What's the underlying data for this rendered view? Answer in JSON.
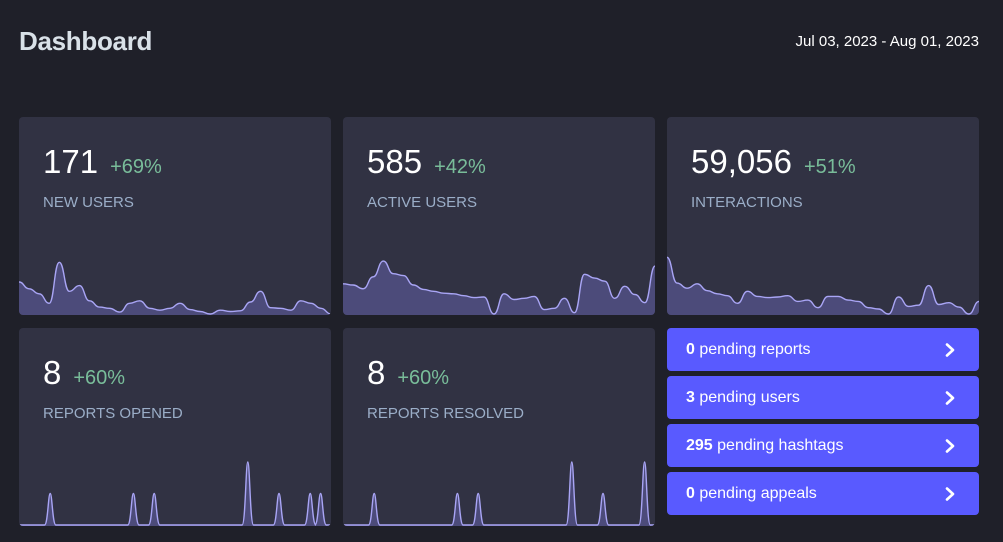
{
  "header": {
    "title": "Dashboard",
    "date_range": "Jul 03, 2023 - Aug 01, 2023"
  },
  "metrics": [
    {
      "value": "171",
      "change": "+69%",
      "label": "NEW USERS",
      "spark": [
        0.51,
        0.4,
        0.32,
        0.17,
        0.82,
        0.36,
        0.45,
        0.21,
        0.11,
        0.09,
        0.03,
        0.17,
        0.21,
        0.09,
        0.06,
        0.09,
        0.17,
        0.07,
        0.04,
        0.0,
        0.06,
        0.04,
        0.05,
        0.19,
        0.36,
        0.1,
        0.09,
        0.06,
        0.21,
        0.17,
        0.09,
        0.0
      ]
    },
    {
      "value": "585",
      "change": "+42%",
      "label": "ACTIVE USERS",
      "spark": [
        0.48,
        0.46,
        0.4,
        0.59,
        0.84,
        0.64,
        0.61,
        0.46,
        0.39,
        0.36,
        0.33,
        0.32,
        0.29,
        0.26,
        0.27,
        0.0,
        0.32,
        0.23,
        0.25,
        0.28,
        0.07,
        0.09,
        0.25,
        0.02,
        0.63,
        0.57,
        0.52,
        0.25,
        0.44,
        0.31,
        0.18,
        0.76
      ]
    },
    {
      "value": "59,056",
      "change": "+51%",
      "label": "INTERACTIONS",
      "spark": [
        0.9,
        0.49,
        0.41,
        0.48,
        0.37,
        0.32,
        0.29,
        0.17,
        0.36,
        0.28,
        0.26,
        0.27,
        0.29,
        0.2,
        0.22,
        0.1,
        0.28,
        0.28,
        0.22,
        0.2,
        0.1,
        0.08,
        0.0,
        0.27,
        0.12,
        0.14,
        0.45,
        0.15,
        0.18,
        0.11,
        0.0,
        0.2
      ]
    },
    {
      "value": "8",
      "change": "+60%",
      "label": "REPORTS OPENED",
      "spark": [
        0,
        0,
        0,
        1,
        0,
        0,
        0,
        0,
        0,
        0,
        0,
        1,
        0,
        1,
        0,
        0,
        0,
        0,
        0,
        0,
        0,
        0,
        2,
        0,
        0,
        1,
        0,
        0,
        1,
        1,
        0
      ]
    },
    {
      "value": "8",
      "change": "+60%",
      "label": "REPORTS RESOLVED",
      "spark": [
        0,
        0,
        0,
        1,
        0,
        0,
        0,
        0,
        0,
        0,
        0,
        1,
        0,
        1,
        0,
        0,
        0,
        0,
        0,
        0,
        0,
        0,
        2,
        0,
        0,
        1,
        0,
        0,
        0,
        2,
        0
      ]
    }
  ],
  "actions": [
    {
      "count": "0",
      "text": " pending reports"
    },
    {
      "count": "3",
      "text": " pending users"
    },
    {
      "count": "295",
      "text": " pending hashtags"
    },
    {
      "count": "0",
      "text": " pending appeals"
    }
  ],
  "icons": {
    "action_arrow": "chevron-right-icon"
  },
  "colors": {
    "background": "#1f2029",
    "card": "#313243",
    "positive_change": "#79bd9a",
    "label": "#9baec8",
    "accent": "#595aff",
    "spark_fill": "#4c4b7a",
    "spark_stroke": "#a9a5f5"
  }
}
